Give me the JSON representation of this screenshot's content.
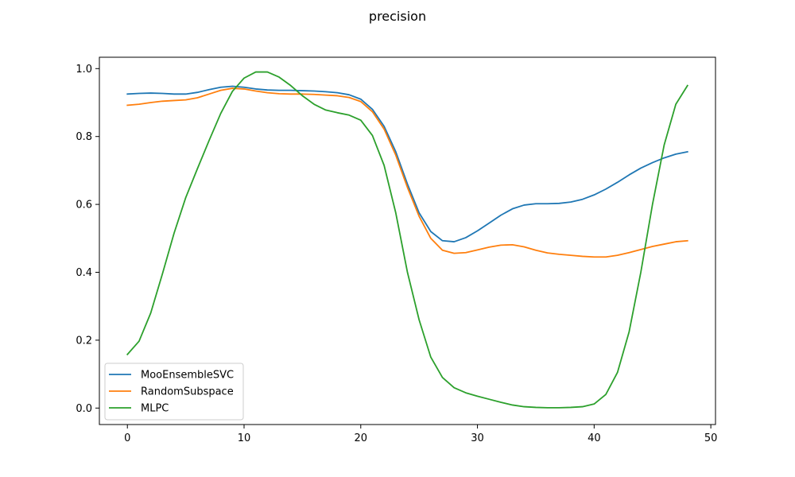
{
  "chart_data": {
    "type": "line",
    "title": "precision",
    "xlabel": "",
    "ylabel": "",
    "xlim": [
      -2.4,
      50.4
    ],
    "ylim": [
      -0.0485,
      1.0335
    ],
    "xticks": [
      0,
      10,
      20,
      30,
      40,
      50
    ],
    "yticks": [
      0.0,
      0.2,
      0.4,
      0.6,
      0.8,
      1.0
    ],
    "xtick_labels": [
      "0",
      "10",
      "20",
      "30",
      "40",
      "50"
    ],
    "ytick_labels": [
      "0.0",
      "0.2",
      "0.4",
      "0.6",
      "0.8",
      "1.0"
    ],
    "grid": false,
    "legend_position": "lower-left",
    "x": [
      0,
      1,
      2,
      3,
      4,
      5,
      6,
      7,
      8,
      9,
      10,
      11,
      12,
      13,
      14,
      15,
      16,
      17,
      18,
      19,
      20,
      21,
      22,
      23,
      24,
      25,
      26,
      27,
      28,
      29,
      30,
      31,
      32,
      33,
      34,
      35,
      36,
      37,
      38,
      39,
      40,
      41,
      42,
      43,
      44,
      45,
      46,
      47,
      48
    ],
    "series": [
      {
        "name": "MooEnsembleSVC",
        "color": "#1f77b4",
        "values": [
          0.925,
          0.927,
          0.928,
          0.927,
          0.925,
          0.925,
          0.93,
          0.938,
          0.945,
          0.948,
          0.945,
          0.94,
          0.937,
          0.936,
          0.936,
          0.935,
          0.934,
          0.932,
          0.929,
          0.923,
          0.91,
          0.88,
          0.83,
          0.755,
          0.66,
          0.575,
          0.52,
          0.493,
          0.49,
          0.502,
          0.522,
          0.545,
          0.568,
          0.587,
          0.598,
          0.602,
          0.602,
          0.603,
          0.607,
          0.615,
          0.628,
          0.645,
          0.665,
          0.687,
          0.707,
          0.723,
          0.737,
          0.748,
          0.755
        ]
      },
      {
        "name": "RandomSubspace",
        "color": "#ff7f0e",
        "values": [
          0.892,
          0.895,
          0.9,
          0.904,
          0.906,
          0.908,
          0.914,
          0.925,
          0.936,
          0.942,
          0.94,
          0.934,
          0.929,
          0.926,
          0.925,
          0.925,
          0.924,
          0.922,
          0.92,
          0.915,
          0.903,
          0.873,
          0.822,
          0.745,
          0.65,
          0.565,
          0.5,
          0.465,
          0.456,
          0.458,
          0.466,
          0.474,
          0.48,
          0.481,
          0.475,
          0.465,
          0.457,
          0.453,
          0.45,
          0.447,
          0.445,
          0.445,
          0.45,
          0.458,
          0.467,
          0.476,
          0.483,
          0.49,
          0.493
        ]
      },
      {
        "name": "MLPC",
        "color": "#2ca02c",
        "values": [
          0.158,
          0.197,
          0.28,
          0.395,
          0.515,
          0.62,
          0.705,
          0.788,
          0.868,
          0.933,
          0.972,
          0.99,
          0.99,
          0.975,
          0.95,
          0.92,
          0.895,
          0.878,
          0.87,
          0.863,
          0.848,
          0.803,
          0.715,
          0.575,
          0.4,
          0.26,
          0.15,
          0.09,
          0.06,
          0.045,
          0.035,
          0.026,
          0.017,
          0.009,
          0.004,
          0.002,
          0.001,
          0.001,
          0.002,
          0.004,
          0.012,
          0.04,
          0.105,
          0.225,
          0.4,
          0.6,
          0.775,
          0.895,
          0.95
        ]
      }
    ]
  }
}
